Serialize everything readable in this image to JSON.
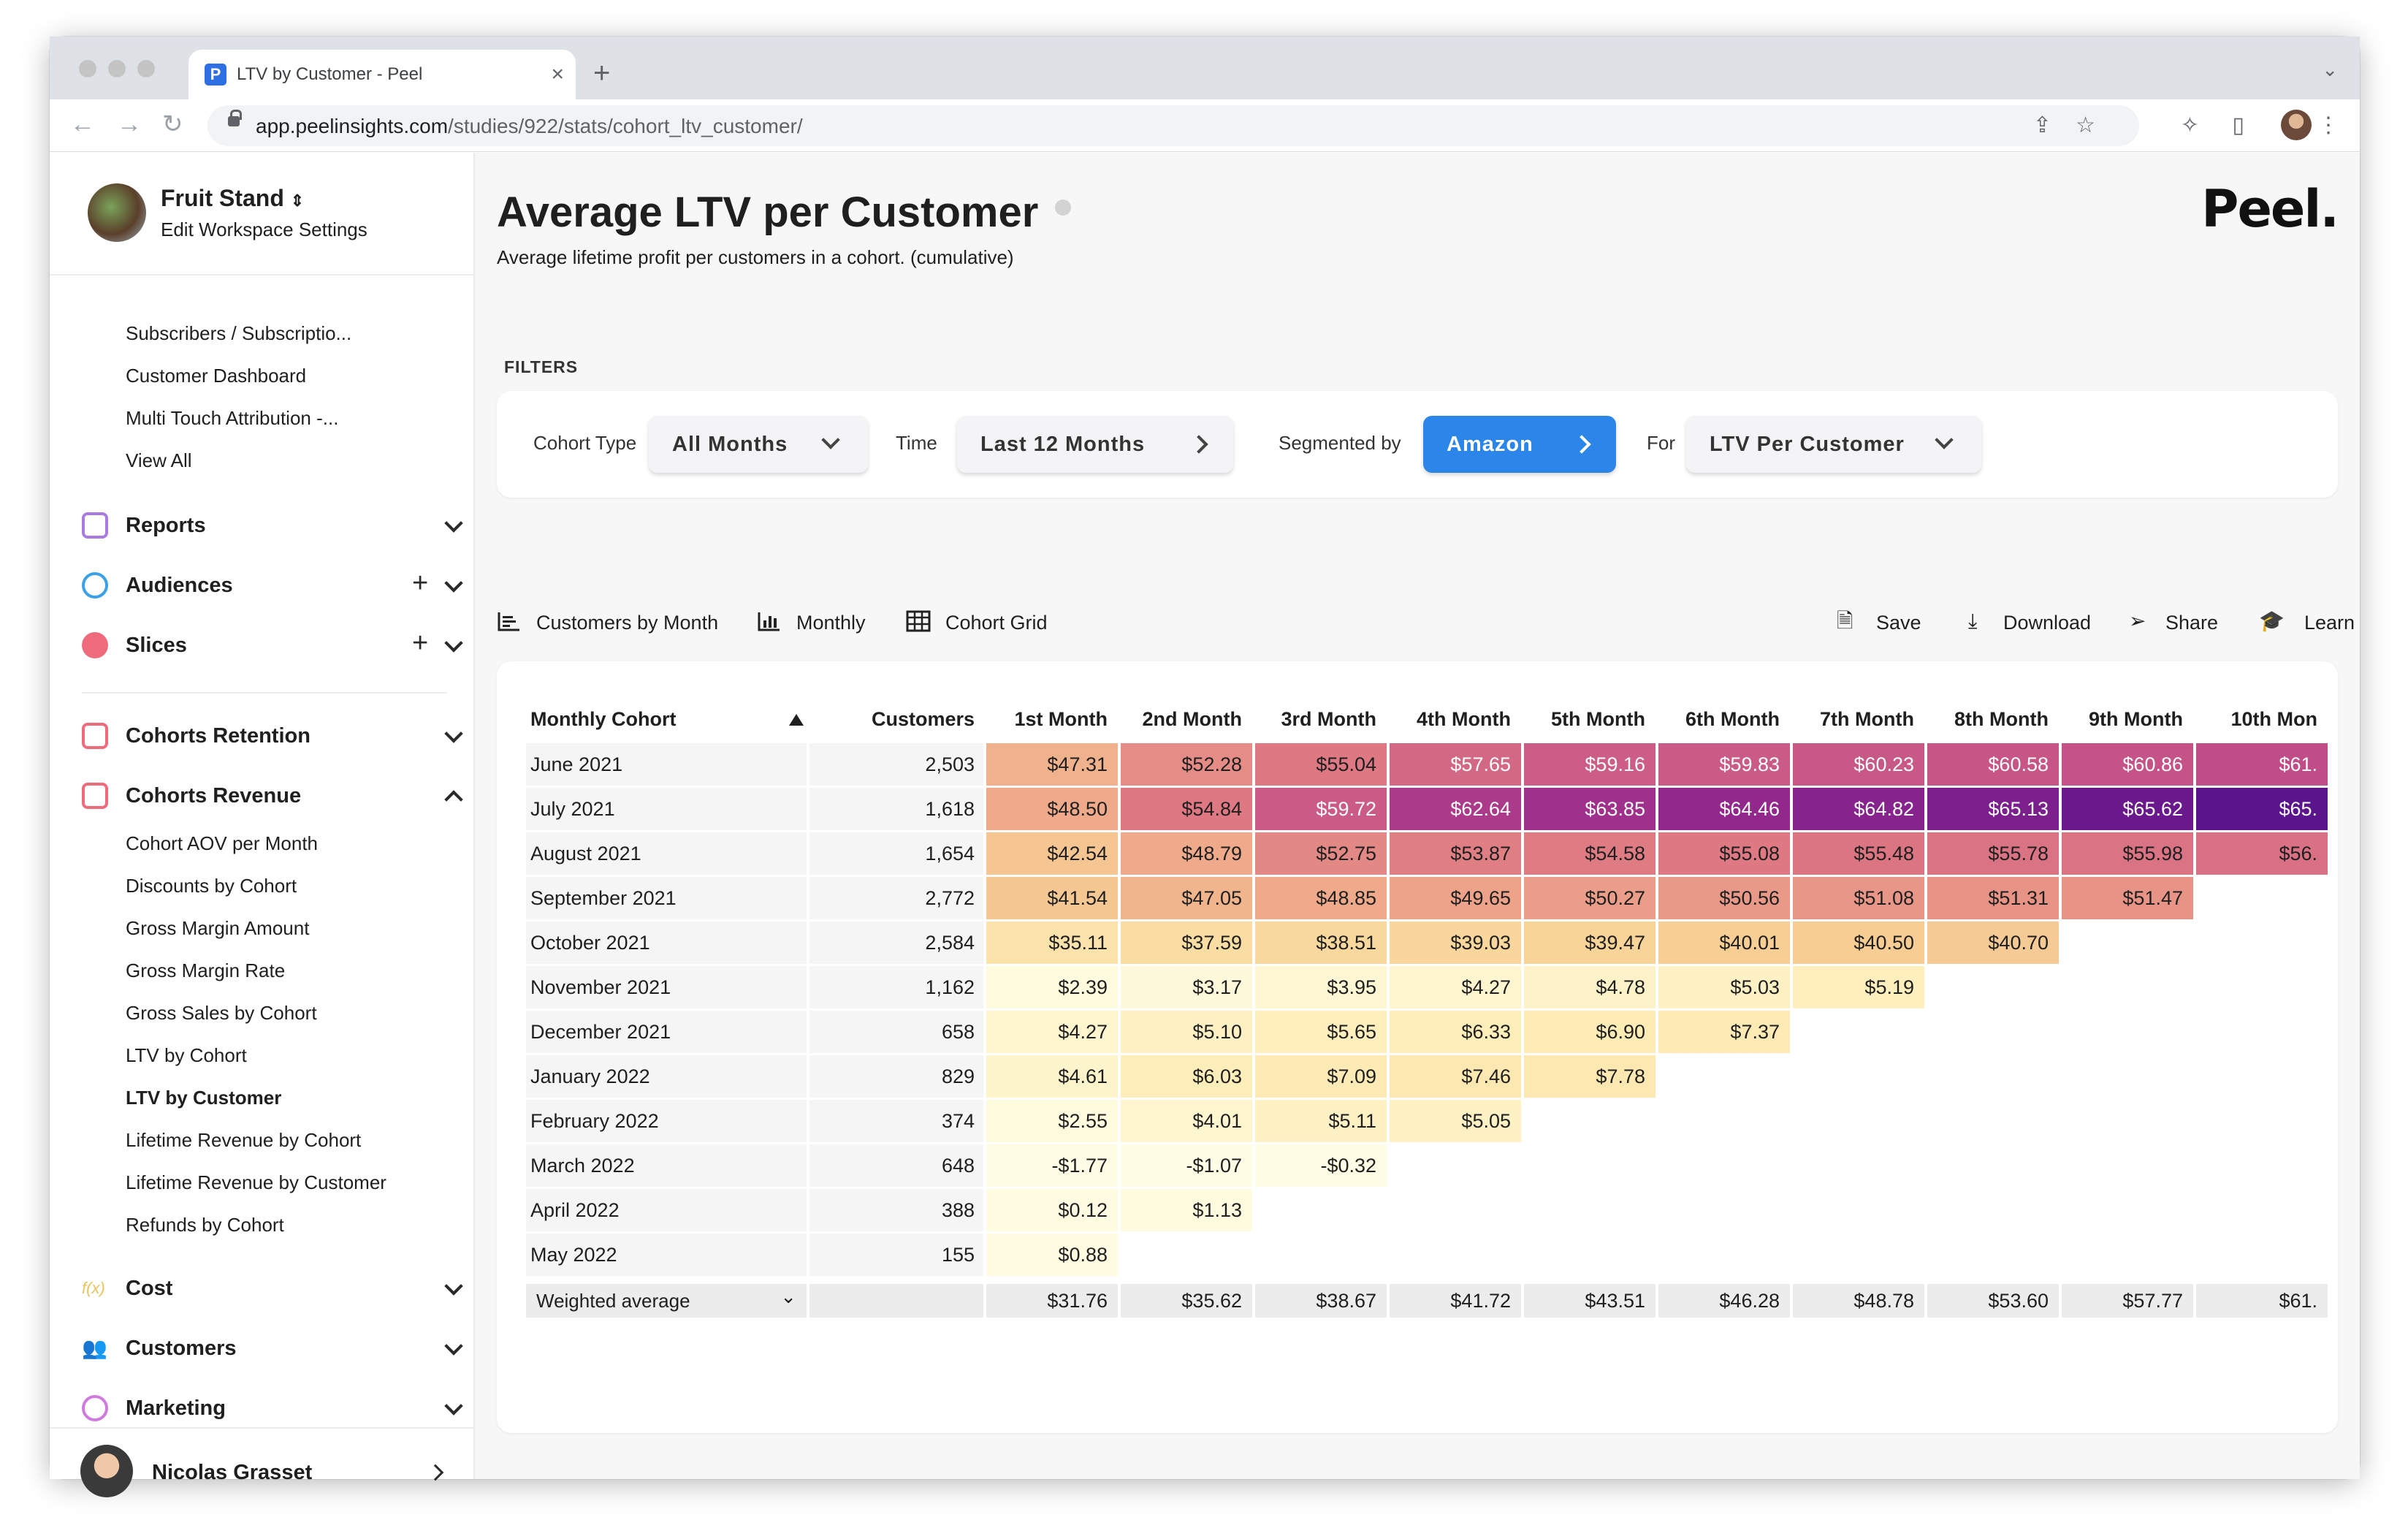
{
  "browser": {
    "tab_title": "LTV by Customer - Peel",
    "tab_favicon_letter": "P",
    "url_host": "app.peelinsights.com",
    "url_path": "/studies/922/stats/cohort_ltv_customer/"
  },
  "workspace": {
    "name": "Fruit Stand",
    "settings_link": "Edit Workspace Settings"
  },
  "sidebar": {
    "top_items": [
      {
        "label": "Subscribers / Subscriptio..."
      },
      {
        "label": "Customer Dashboard"
      },
      {
        "label": "Multi Touch Attribution -..."
      },
      {
        "label": "View All"
      }
    ],
    "sections": [
      {
        "label": "Reports",
        "icon": "reports-icon",
        "color": "#a97be0"
      },
      {
        "label": "Audiences",
        "icon": "audiences-icon",
        "color": "#3aa0e8"
      },
      {
        "label": "Slices",
        "icon": "slices-icon",
        "color": "#ef6a7a"
      },
      {
        "label": "Cohorts Retention",
        "icon": "cohorts-retention-icon",
        "color": "#ef6a7a"
      },
      {
        "label": "Cohorts Revenue",
        "icon": "cohorts-revenue-icon",
        "color": "#ef6a7a"
      },
      {
        "label": "Cost",
        "icon": "cost-icon",
        "color": "#e8c45a"
      },
      {
        "label": "Customers",
        "icon": "customers-icon",
        "color": "#6b8fe8"
      },
      {
        "label": "Marketing",
        "icon": "marketing-icon",
        "color": "#d07ae0"
      }
    ],
    "revenue_items": [
      {
        "label": "Cohort AOV per Month"
      },
      {
        "label": "Discounts by Cohort"
      },
      {
        "label": "Gross Margin Amount"
      },
      {
        "label": "Gross Margin Rate"
      },
      {
        "label": "Gross Sales by Cohort"
      },
      {
        "label": "LTV by Cohort"
      },
      {
        "label": "LTV by Customer"
      },
      {
        "label": "Lifetime Revenue by Cohort"
      },
      {
        "label": "Lifetime Revenue by Customer"
      },
      {
        "label": "Refunds by Cohort"
      }
    ],
    "user_name": "Nicolas Grasset"
  },
  "page": {
    "title": "Average LTV per Customer",
    "subtitle": "Average lifetime profit per customers in a cohort. (cumulative)",
    "logo": "Peel."
  },
  "filters": {
    "section_label": "FILTERS",
    "cohort_type_label": "Cohort Type",
    "cohort_type_value": "All Months",
    "time_label": "Time",
    "time_value": "Last 12 Months",
    "segmented_label": "Segmented by",
    "segmented_value": "Amazon",
    "for_label": "For",
    "for_value": "LTV Per Customer"
  },
  "views": {
    "customers_by_month": "Customers by Month",
    "monthly": "Monthly",
    "cohort_grid": "Cohort Grid",
    "save": "Save",
    "download": "Download",
    "share": "Share",
    "learn": "Learn"
  },
  "table": {
    "cohort_header": "Monthly Cohort",
    "customers_header": "Customers",
    "month_headers": [
      "1st Month",
      "2nd Month",
      "3rd Month",
      "4th Month",
      "5th Month",
      "6th Month",
      "7th Month",
      "8th Month",
      "9th Month",
      "10th Mon"
    ],
    "rows": [
      {
        "cohort": "June 2021",
        "customers": "2,503",
        "values": [
          "$47.31",
          "$52.28",
          "$55.04",
          "$57.65",
          "$59.16",
          "$59.83",
          "$60.23",
          "$60.58",
          "$60.86",
          "$61."
        ],
        "levels": [
          0.37,
          0.49,
          0.55,
          0.61,
          0.65,
          0.66,
          0.67,
          0.68,
          0.69,
          0.71
        ]
      },
      {
        "cohort": "July 2021",
        "customers": "1,618",
        "values": [
          "$48.50",
          "$54.84",
          "$59.72",
          "$62.64",
          "$63.85",
          "$64.46",
          "$64.82",
          "$65.13",
          "$65.62",
          "$65."
        ],
        "levels": [
          0.4,
          0.55,
          0.66,
          0.78,
          0.82,
          0.86,
          0.89,
          0.92,
          0.96,
          1.0
        ]
      },
      {
        "cohort": "August 2021",
        "customers": "1,654",
        "values": [
          "$42.54",
          "$48.79",
          "$52.75",
          "$53.87",
          "$54.58",
          "$55.08",
          "$55.48",
          "$55.78",
          "$55.98",
          "$56."
        ],
        "levels": [
          0.3,
          0.4,
          0.5,
          0.53,
          0.54,
          0.55,
          0.56,
          0.57,
          0.57,
          0.58
        ]
      },
      {
        "cohort": "September 2021",
        "customers": "2,772",
        "values": [
          "$41.54",
          "$47.05",
          "$48.85",
          "$49.65",
          "$50.27",
          "$50.56",
          "$51.08",
          "$51.31",
          "$51.47"
        ],
        "levels": [
          0.29,
          0.36,
          0.4,
          0.42,
          0.44,
          0.45,
          0.46,
          0.47,
          0.47
        ]
      },
      {
        "cohort": "October 2021",
        "customers": "2,584",
        "values": [
          "$35.11",
          "$37.59",
          "$38.51",
          "$39.03",
          "$39.47",
          "$40.01",
          "$40.50",
          "$40.70"
        ],
        "levels": [
          0.17,
          0.2,
          0.22,
          0.23,
          0.24,
          0.26,
          0.27,
          0.28
        ]
      },
      {
        "cohort": "November 2021",
        "customers": "1,162",
        "values": [
          "$2.39",
          "$3.17",
          "$3.95",
          "$4.27",
          "$4.78",
          "$5.03",
          "$5.19"
        ],
        "levels": [
          0.02,
          0.03,
          0.05,
          0.06,
          0.08,
          0.09,
          0.11
        ]
      },
      {
        "cohort": "December 2021",
        "customers": "658",
        "values": [
          "$4.27",
          "$5.10",
          "$5.65",
          "$6.33",
          "$6.90",
          "$7.37"
        ],
        "levels": [
          0.06,
          0.09,
          0.11,
          0.12,
          0.13,
          0.14
        ]
      },
      {
        "cohort": "January 2022",
        "customers": "829",
        "values": [
          "$4.61",
          "$6.03",
          "$7.09",
          "$7.46",
          "$7.78"
        ],
        "levels": [
          0.07,
          0.12,
          0.14,
          0.15,
          0.15
        ]
      },
      {
        "cohort": "February 2022",
        "customers": "374",
        "values": [
          "$2.55",
          "$4.01",
          "$5.11",
          "$5.05"
        ],
        "levels": [
          0.02,
          0.06,
          0.09,
          0.09
        ]
      },
      {
        "cohort": "March 2022",
        "customers": "648",
        "values": [
          "-$1.77",
          "-$1.07",
          "-$0.32"
        ],
        "levels": [
          0.0,
          0.0,
          0.0
        ]
      },
      {
        "cohort": "April 2022",
        "customers": "388",
        "values": [
          "$0.12",
          "$1.13"
        ],
        "levels": [
          0.01,
          0.02
        ]
      },
      {
        "cohort": "May 2022",
        "customers": "155",
        "values": [
          "$0.88"
        ],
        "levels": [
          0.01
        ]
      }
    ],
    "average_label": "Weighted average",
    "averages": [
      "$31.76",
      "$35.62",
      "$38.67",
      "$41.72",
      "$43.51",
      "$46.28",
      "$48.78",
      "$53.60",
      "$57.77",
      "$61."
    ]
  }
}
